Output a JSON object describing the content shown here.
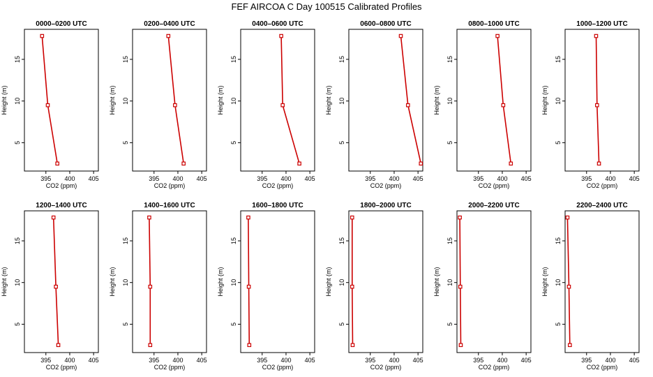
{
  "title": "FEF AIRCOA C  Day 100515  Calibrated Profiles",
  "chart_data": {
    "type": "line",
    "xlabel": "CO2 (ppm)",
    "ylabel": "Height (m)",
    "xlim": [
      390.5,
      406
    ],
    "ylim": [
      1.6,
      18.6
    ],
    "xticks": [
      395,
      400,
      405
    ],
    "yticks": [
      5,
      10,
      15
    ],
    "heights": [
      17.8,
      9.5,
      2.5
    ],
    "panels": [
      {
        "title": "0000–0200 UTC",
        "co2": [
          394.2,
          395.4,
          397.4
        ]
      },
      {
        "title": "0200–0400 UTC",
        "co2": [
          398.0,
          399.4,
          401.2
        ]
      },
      {
        "title": "0400–0600 UTC",
        "co2": [
          399.0,
          399.3,
          402.8
        ]
      },
      {
        "title": "0600–0800 UTC",
        "co2": [
          401.4,
          402.9,
          405.6
        ]
      },
      {
        "title": "0800–1000 UTC",
        "co2": [
          399.0,
          400.2,
          401.8
        ]
      },
      {
        "title": "1000–1200 UTC",
        "co2": [
          397.0,
          397.2,
          397.6
        ]
      },
      {
        "title": "1200–1400 UTC",
        "co2": [
          396.6,
          397.1,
          397.6
        ]
      },
      {
        "title": "1400–1600 UTC",
        "co2": [
          394.0,
          394.2,
          394.2
        ]
      },
      {
        "title": "1600–1800 UTC",
        "co2": [
          392.1,
          392.2,
          392.3
        ]
      },
      {
        "title": "1800–2000 UTC",
        "co2": [
          391.2,
          391.2,
          391.3
        ]
      },
      {
        "title": "2000–2200 UTC",
        "co2": [
          391.1,
          391.2,
          391.3
        ]
      },
      {
        "title": "2200–2400 UTC",
        "co2": [
          391.0,
          391.3,
          391.5
        ]
      }
    ]
  }
}
